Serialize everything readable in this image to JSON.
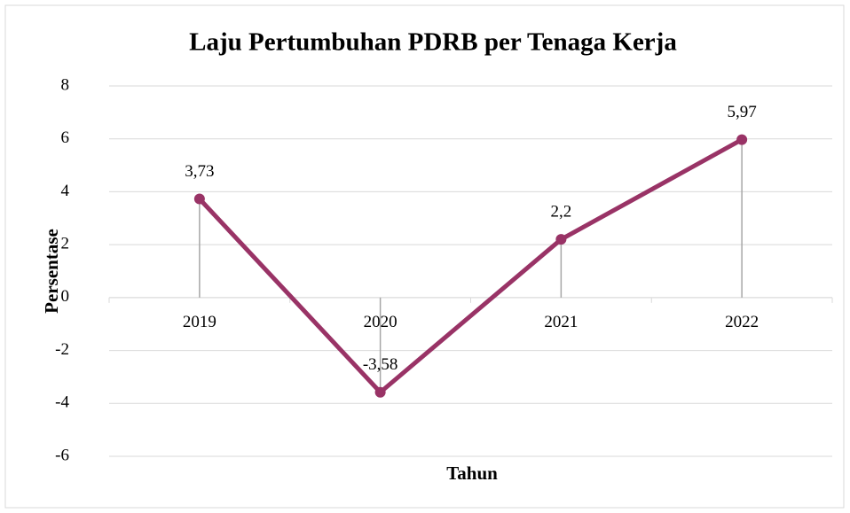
{
  "chart_data": {
    "type": "line",
    "title": "Laju Pertumbuhan PDRB per Tenaga Kerja",
    "x_label": "Tahun",
    "y_label": "Persentase",
    "categories": [
      "2019",
      "2020",
      "2021",
      "2022"
    ],
    "series": [
      {
        "name": "Laju Pertumbuhan PDRB per Tenaga Kerja",
        "color": "#993366",
        "values": [
          3.73,
          -3.58,
          2.2,
          5.97
        ],
        "value_labels": [
          "3,73",
          "-3,58",
          "2,2",
          "5,97"
        ]
      }
    ],
    "ylim": [
      -6,
      8
    ],
    "yticks": [
      -6,
      -4,
      -2,
      0,
      2,
      4,
      6,
      8
    ],
    "grid": true,
    "drop_lines": true
  }
}
